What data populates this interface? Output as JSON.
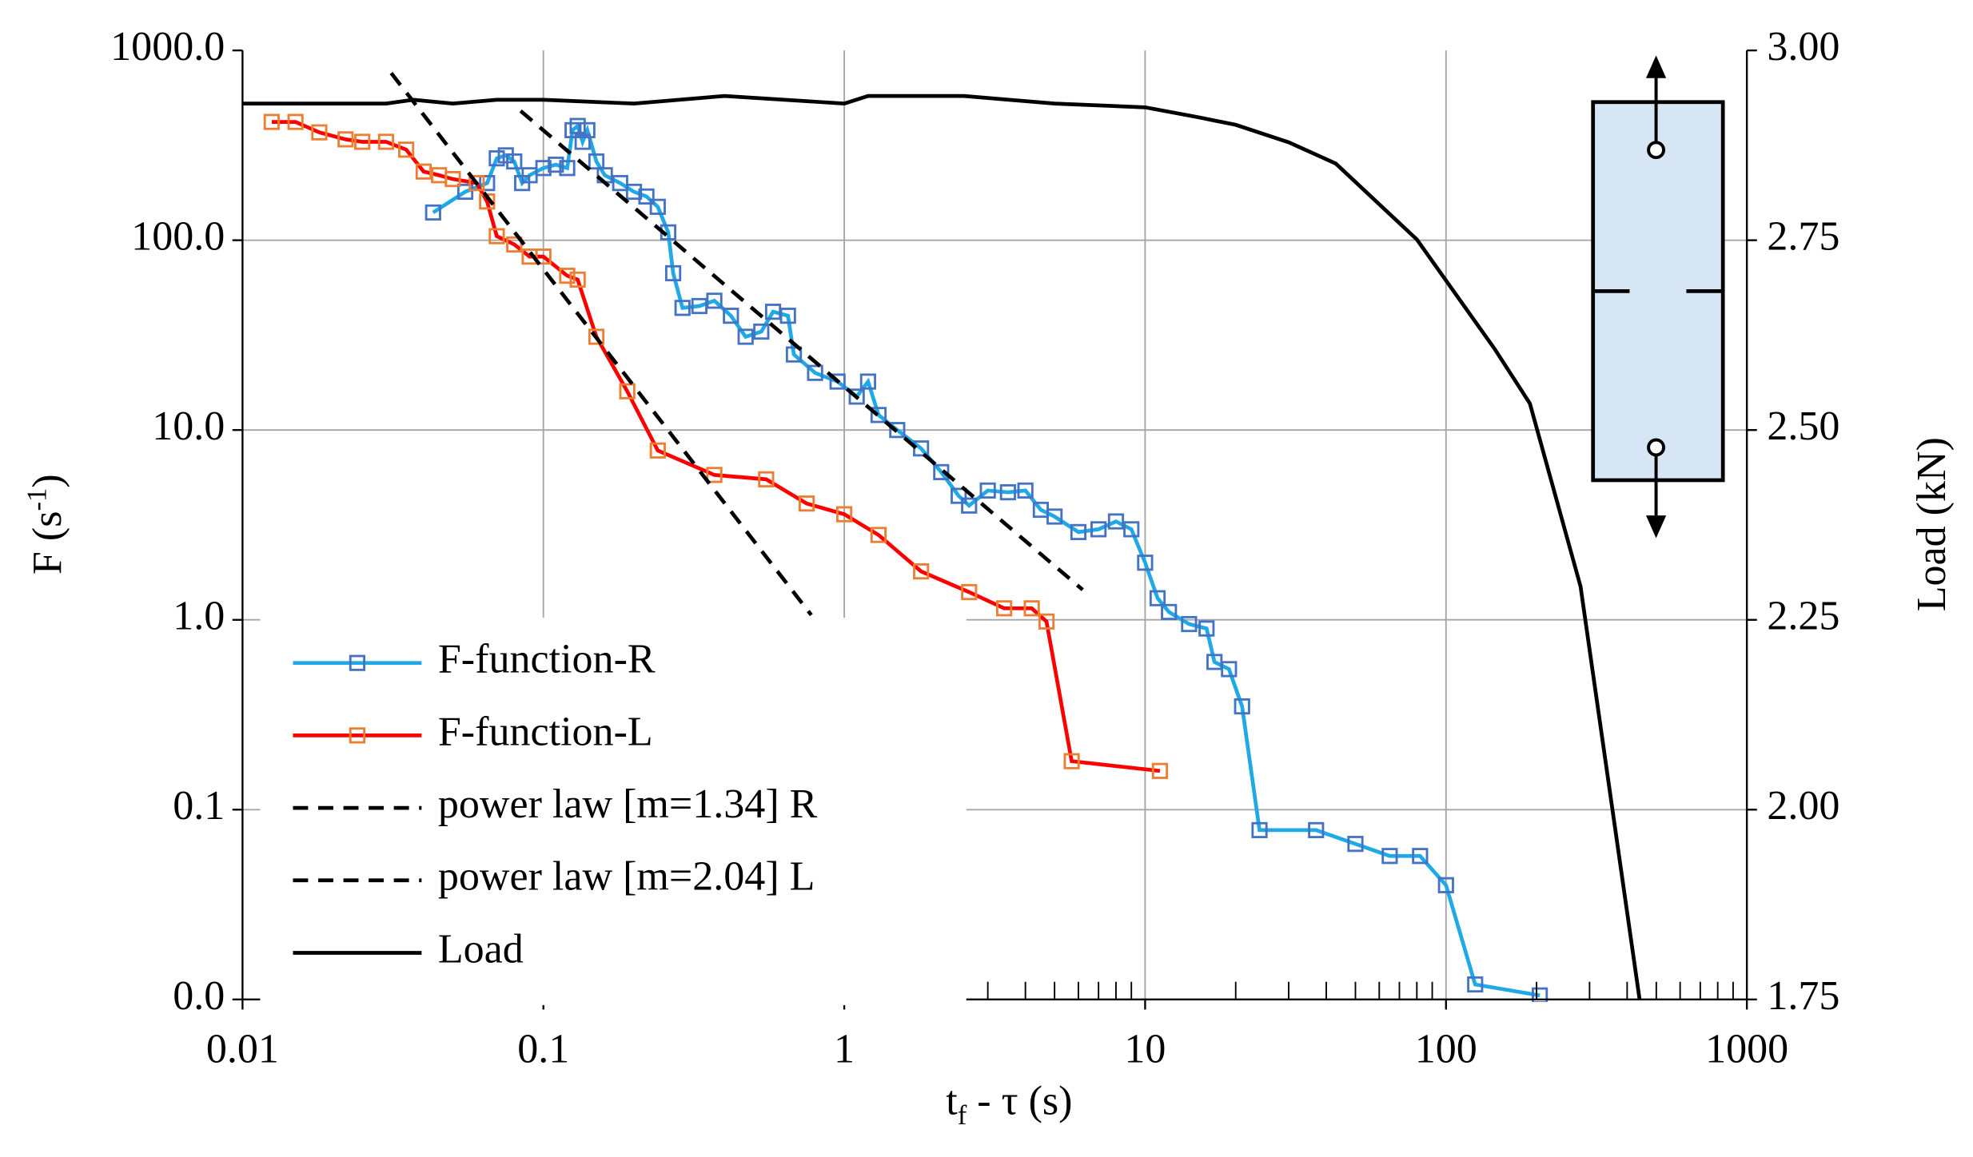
{
  "chart_data": {
    "type": "line",
    "xlabel": [
      "t",
      "f",
      " - τ (s)"
    ],
    "ylabel": [
      "F (s",
      "-1",
      ")"
    ],
    "y2label": "Load (kN)",
    "xscale": "log",
    "yscale": "log",
    "xlim": [
      0.01,
      1000
    ],
    "ylim": [
      0.01,
      1000
    ],
    "y2lim": [
      1.75,
      3.0
    ],
    "xticks": [
      0.01,
      0.1,
      1,
      10,
      100,
      1000
    ],
    "yticks": [
      {
        "value": 0.01,
        "label": "0.0"
      },
      0.1,
      {
        "value": 1,
        "label": "1.0"
      },
      {
        "value": 10,
        "label": "10.0"
      },
      {
        "value": 100,
        "label": "100.0"
      },
      {
        "value": 1000,
        "label": "1000.0"
      }
    ],
    "y2ticks": [
      1.75,
      {
        "value": 2,
        "label": "2.00"
      },
      2.25,
      {
        "value": 2.5,
        "label": "2.50"
      },
      2.75,
      {
        "value": 3,
        "label": "3.00"
      }
    ],
    "grid": true,
    "legend": "lower left",
    "series": [
      {
        "name": "F-function-R",
        "color": "#1fa9e6",
        "marker_color": "#4472c4",
        "marker": "square",
        "x": [
          0.043,
          0.055,
          0.065,
          0.07,
          0.075,
          0.08,
          0.085,
          0.09,
          0.1,
          0.11,
          0.12,
          0.125,
          0.13,
          0.135,
          0.14,
          0.15,
          0.16,
          0.18,
          0.2,
          0.22,
          0.24,
          0.26,
          0.27,
          0.29,
          0.33,
          0.37,
          0.42,
          0.47,
          0.53,
          0.58,
          0.65,
          0.68,
          0.8,
          0.95,
          1.1,
          1.2,
          1.3,
          1.5,
          1.8,
          2.1,
          2.4,
          2.6,
          3.0,
          3.5,
          4.0,
          4.5,
          5.0,
          6.0,
          7.0,
          8.0,
          9.0,
          10,
          11,
          12,
          14,
          16,
          17,
          19,
          21,
          24,
          37,
          50,
          65,
          82,
          100,
          125,
          205
        ],
        "values": [
          140,
          180,
          200,
          270,
          280,
          260,
          200,
          220,
          240,
          250,
          240,
          380,
          400,
          330,
          380,
          260,
          220,
          200,
          180,
          170,
          150,
          110,
          67,
          44,
          45,
          48,
          40,
          31,
          33,
          42,
          40,
          25,
          20,
          18,
          15,
          18,
          12,
          10,
          8,
          6,
          4.5,
          4.0,
          4.8,
          4.7,
          4.8,
          3.8,
          3.5,
          2.9,
          3.0,
          3.3,
          3.0,
          2.0,
          1.3,
          1.1,
          0.95,
          0.9,
          0.6,
          0.55,
          0.35,
          0.078,
          0.078,
          0.066,
          0.057,
          0.057,
          0.04,
          0.012,
          0.0105
        ]
      },
      {
        "name": "F-function-L",
        "color": "#ff0000",
        "marker_color": "#ed7d31",
        "marker": "square",
        "x": [
          0.0125,
          0.015,
          0.018,
          0.022,
          0.025,
          0.03,
          0.035,
          0.04,
          0.045,
          0.05,
          0.06,
          0.065,
          0.07,
          0.08,
          0.09,
          0.1,
          0.12,
          0.13,
          0.15,
          0.19,
          0.24,
          0.37,
          0.55,
          0.75,
          1.0,
          1.3,
          1.8,
          2.6,
          3.4,
          4.2,
          4.7,
          5.7,
          11.2
        ],
        "values": [
          420,
          420,
          370,
          340,
          330,
          330,
          300,
          230,
          220,
          210,
          200,
          160,
          105,
          95,
          82,
          82,
          65,
          62,
          31,
          16,
          7.8,
          5.8,
          5.5,
          4.1,
          3.6,
          2.8,
          1.8,
          1.4,
          1.15,
          1.15,
          0.98,
          0.18,
          0.16
        ]
      },
      {
        "name": "power law [m=1.34] R",
        "color": "#000000",
        "dash": true,
        "x": [
          0.084,
          6.2
        ],
        "values": [
          480,
          1.44
        ]
      },
      {
        "name": "power law [m=2.04] L",
        "color": "#000000",
        "dash": true,
        "x": [
          0.0312,
          0.777
        ],
        "values": [
          760,
          1.06
        ]
      },
      {
        "name": "Load",
        "color": "#000000",
        "axis": "y2",
        "x": [
          0.01,
          0.03,
          0.037,
          0.05,
          0.07,
          0.1,
          0.2,
          0.4,
          1,
          1.2,
          2.5,
          5,
          10,
          15,
          20,
          30,
          43,
          80,
          145,
          190,
          280,
          440
        ],
        "values": [
          2.93,
          2.93,
          2.935,
          2.93,
          2.935,
          2.935,
          2.93,
          2.94,
          2.93,
          2.94,
          2.94,
          2.93,
          2.925,
          2.912,
          2.902,
          2.879,
          2.851,
          2.751,
          2.607,
          2.535,
          2.294,
          1.75
        ]
      }
    ]
  }
}
